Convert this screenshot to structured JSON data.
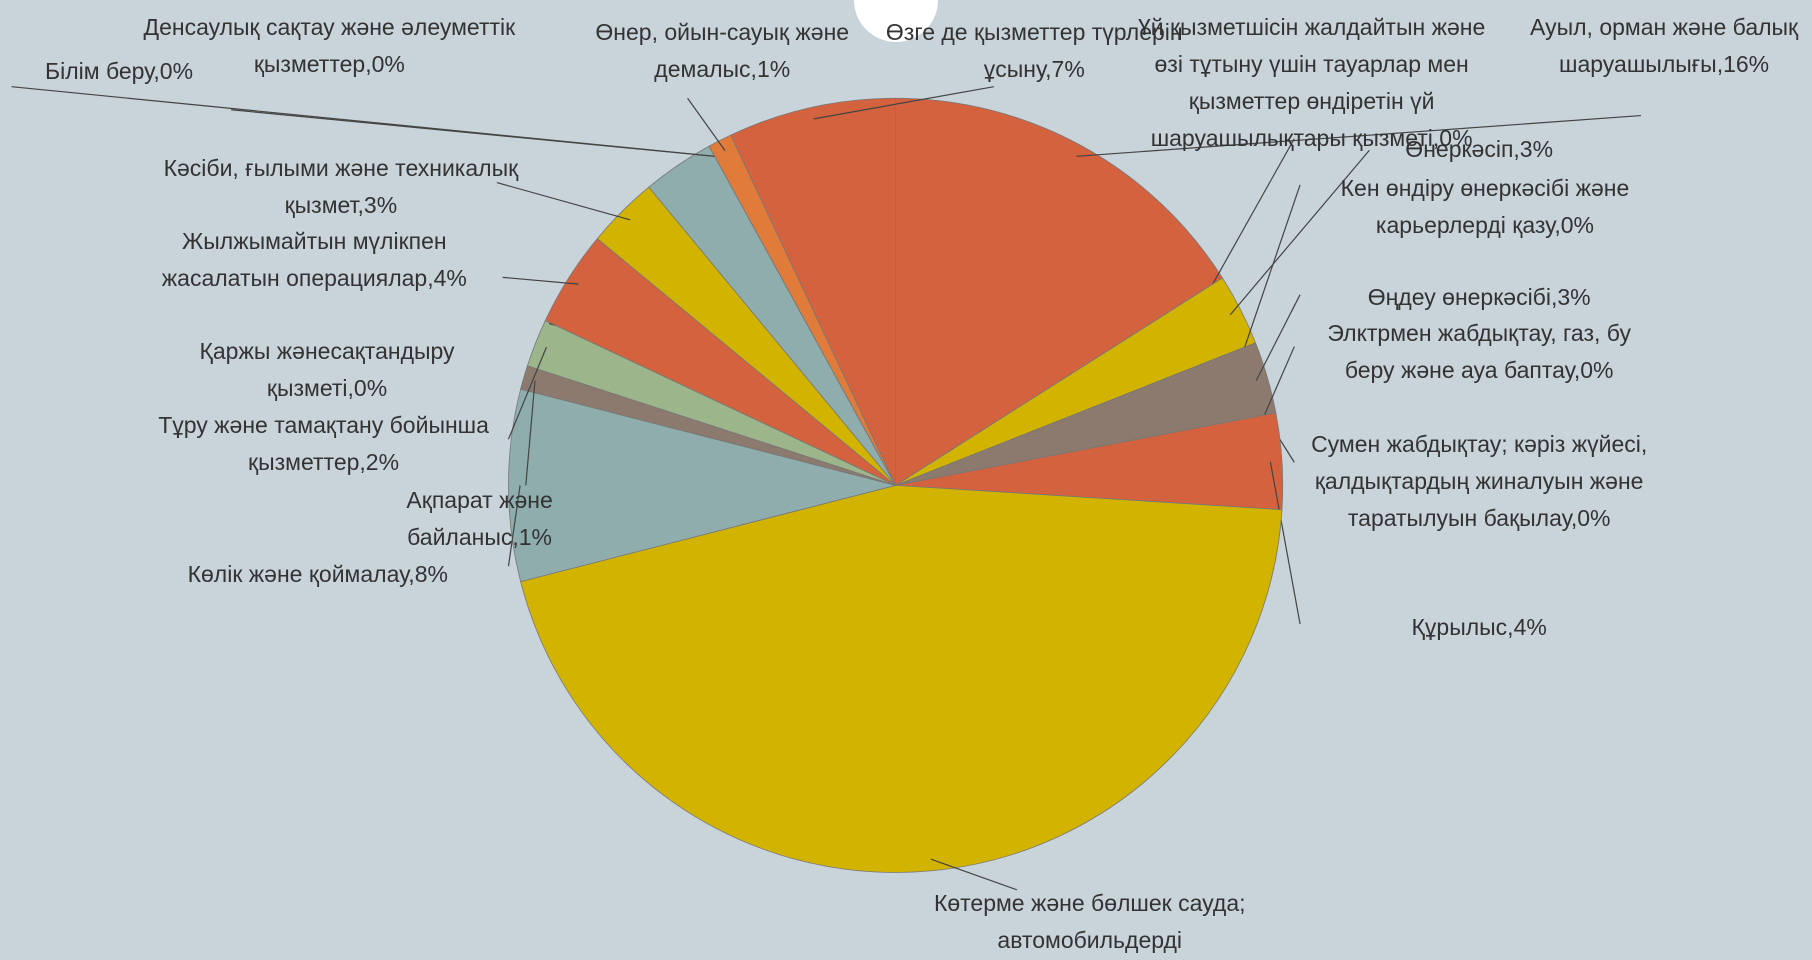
{
  "chart_data": {
    "type": "pie",
    "labels": [
      "Ауыл, орман және балық шаруашылығы,16%",
      "Үй қызметшісін жалдайтын және өзі тұтыну үшін тауарлар мен қызметтер өндіретін үй шаруашылықтары қызметі,0%",
      "Өнеркәсіп,3%",
      "Кен өндіру өнеркәсібі және карьерлерді қазу,0%",
      "Өңдеу өнеркәсібі,3%",
      "Элктрмен жабдықтау, газ, бу беру және ауа баптау,0%",
      "Сумен жабдықтау; кәріз жүйесі, қалдықтардың жиналуын және таратылуын бақылау,0%",
      "Құрылыс,4%",
      "Көтерме және бөлшек сауда; автомобильдерді",
      "Көлік және қоймалау,8%",
      "Ақпарат және байланыс,1%",
      "Тұру және тамақтану бойынша қызметтер,2%",
      "Қаржы жәнесақтандыру қызметі,0%",
      "Жылжымайтын мүлікпен жасалатын операциялар,4%",
      "Кәсіби, ғылыми және техникалық қызмет,3%",
      null,
      "Білім беру,0%",
      "Денсаулық сақтау және әлеуметтік қызметтер,0%",
      "Өнер, ойын-сауық және демалыс,1%",
      "Өзге де қызметтер түрлерін ұсыну,7%"
    ],
    "values": [
      16,
      0,
      3,
      0,
      3,
      0,
      0,
      4,
      45,
      8,
      1,
      2,
      0,
      4,
      3,
      3,
      0,
      0,
      1,
      7
    ],
    "colors": [
      "#d4623f",
      "#d2b400",
      "#d2b400",
      "#8c7a6e",
      "#8c7a6e",
      "#d4623f",
      "#d4623f",
      "#d4623f",
      "#d2b400",
      "#8fadad",
      "#8c7a6e",
      "#9cb58a",
      "#9cb58a",
      "#d4623f",
      "#d2b400",
      "#8fadad",
      "#8c7a6e",
      "#8c7a6e",
      "#e07b3a",
      "#d4623f"
    ]
  }
}
